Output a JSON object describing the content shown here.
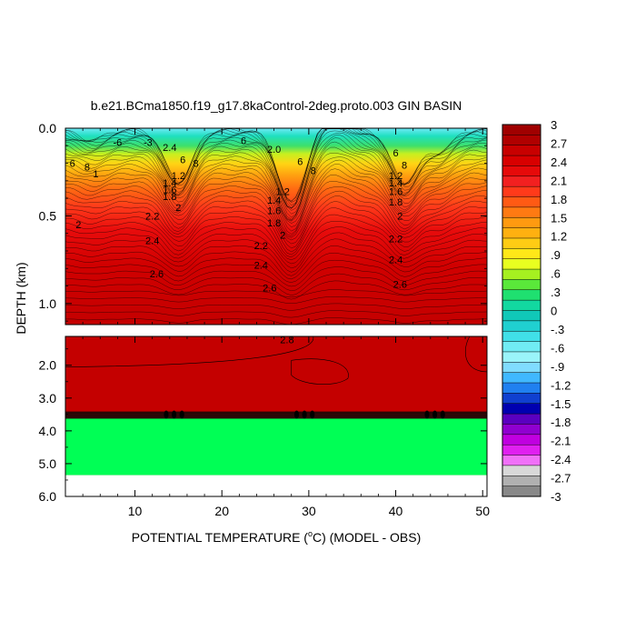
{
  "chart_data": {
    "type": "heatmap",
    "title": "b.e21.BCma1850.f19_g17.8kaControl-2deg.proto.003 GIN BASIN",
    "xlabel_prefix": "POTENTIAL TEMPERATURE (",
    "xlabel_sup": "o",
    "xlabel_suffix": "C) (MODEL - OBS)",
    "ylabel": "DEPTH (km)",
    "xlim": [
      2,
      50.5
    ],
    "x_ticks": [
      10,
      20,
      30,
      40,
      50
    ],
    "x_tick_labels": [
      "10",
      "20",
      "30",
      "40",
      "50"
    ],
    "upper_panel": {
      "ylim": [
        0,
        1.12
      ],
      "y_ticks": [
        0.0,
        0.5,
        1.0
      ],
      "y_tick_labels": [
        "0.0",
        "0.5",
        "1.0"
      ]
    },
    "lower_panel": {
      "ylim": [
        1.12,
        6.0
      ],
      "y_ticks": [
        2.0,
        3.0,
        4.0,
        5.0,
        6.0
      ],
      "y_tick_labels": [
        "2.0",
        "3.0",
        "4.0",
        "5.0",
        "6.0"
      ],
      "fill_color": "#c40000",
      "bottom_band_color": "#00ff55",
      "bottom_band_top": 3.62,
      "bottom_band_bottom": 5.35,
      "dark_band_top": 3.42,
      "dark_band_bottom": 3.62
    },
    "colorbar": {
      "levels": [
        "3",
        "2.7",
        "2.4",
        "2.1",
        "1.8",
        "1.5",
        "1.2",
        ".9",
        ".6",
        ".3",
        "0",
        "-.3",
        "-.6",
        "-.9",
        "-1.2",
        "-1.5",
        "-1.8",
        "-2.1",
        "-2.4",
        "-2.7",
        "-3"
      ],
      "colors": [
        "#a00000",
        "#b00000",
        "#c80000",
        "#d80000",
        "#e60a0a",
        "#f22020",
        "#ff3a1a",
        "#ff5a14",
        "#ff7a12",
        "#ff9a10",
        "#ffb010",
        "#ffcc14",
        "#ffe818",
        "#e8ff20",
        "#a6f020",
        "#5ae83a",
        "#1fe070",
        "#12d8a0",
        "#10c8b8",
        "#20d0d0",
        "#40e0e8",
        "#70ecf4",
        "#9af4fa",
        "#80dcff",
        "#40b8ff",
        "#2080f0",
        "#1040d0",
        "#0000b0",
        "#5a00c0",
        "#9000d0",
        "#c000e0",
        "#e020f0",
        "#f070f8",
        "#d8d8d8",
        "#b0b0b0",
        "#888888"
      ]
    },
    "contour_labels": [
      {
        "x": 8.0,
        "y": 0.08,
        "text": "-6",
        "panel": "upper"
      },
      {
        "x": 11.5,
        "y": 0.08,
        "text": "-3",
        "panel": "upper"
      },
      {
        "x": 14.0,
        "y": 0.11,
        "text": "2.4",
        "panel": "upper"
      },
      {
        "x": 15.5,
        "y": 0.18,
        "text": "6",
        "panel": "upper"
      },
      {
        "x": 17.0,
        "y": 0.2,
        "text": "8",
        "panel": "upper"
      },
      {
        "x": 22.5,
        "y": 0.07,
        "text": "6",
        "panel": "upper"
      },
      {
        "x": 26.0,
        "y": 0.12,
        "text": "2.0",
        "panel": "upper"
      },
      {
        "x": 29.0,
        "y": 0.19,
        "text": "6",
        "panel": "upper"
      },
      {
        "x": 30.5,
        "y": 0.24,
        "text": "8",
        "panel": "upper"
      },
      {
        "x": 40.0,
        "y": 0.14,
        "text": "6",
        "panel": "upper"
      },
      {
        "x": 41.0,
        "y": 0.21,
        "text": "8",
        "panel": "upper"
      },
      {
        "x": 2.8,
        "y": 0.2,
        "text": "6",
        "panel": "upper"
      },
      {
        "x": 4.5,
        "y": 0.22,
        "text": "8",
        "panel": "upper"
      },
      {
        "x": 5.5,
        "y": 0.26,
        "text": "1",
        "panel": "upper"
      },
      {
        "x": 15.0,
        "y": 0.27,
        "text": "1.2",
        "panel": "upper"
      },
      {
        "x": 14.0,
        "y": 0.31,
        "text": "1.4",
        "panel": "upper"
      },
      {
        "x": 14.0,
        "y": 0.35,
        "text": "1.6",
        "panel": "upper"
      },
      {
        "x": 14.0,
        "y": 0.39,
        "text": "1.8",
        "panel": "upper"
      },
      {
        "x": 15.0,
        "y": 0.45,
        "text": "2",
        "panel": "upper"
      },
      {
        "x": 27.0,
        "y": 0.36,
        "text": "1.2",
        "panel": "upper"
      },
      {
        "x": 26.0,
        "y": 0.41,
        "text": "1.4",
        "panel": "upper"
      },
      {
        "x": 26.0,
        "y": 0.47,
        "text": "1.6",
        "panel": "upper"
      },
      {
        "x": 26.0,
        "y": 0.54,
        "text": "1.8",
        "panel": "upper"
      },
      {
        "x": 27.0,
        "y": 0.61,
        "text": "2",
        "panel": "upper"
      },
      {
        "x": 40.0,
        "y": 0.27,
        "text": "1.2",
        "panel": "upper"
      },
      {
        "x": 40.0,
        "y": 0.31,
        "text": "1.4",
        "panel": "upper"
      },
      {
        "x": 40.0,
        "y": 0.36,
        "text": "1.6",
        "panel": "upper"
      },
      {
        "x": 40.0,
        "y": 0.42,
        "text": "1.8",
        "panel": "upper"
      },
      {
        "x": 40.5,
        "y": 0.5,
        "text": "2",
        "panel": "upper"
      },
      {
        "x": 3.5,
        "y": 0.55,
        "text": "2",
        "panel": "upper"
      },
      {
        "x": 12.0,
        "y": 0.5,
        "text": "2.2",
        "panel": "upper"
      },
      {
        "x": 12.0,
        "y": 0.64,
        "text": "2.4",
        "panel": "upper"
      },
      {
        "x": 24.5,
        "y": 0.67,
        "text": "2.2",
        "panel": "upper"
      },
      {
        "x": 24.5,
        "y": 0.78,
        "text": "2.4",
        "panel": "upper"
      },
      {
        "x": 40.0,
        "y": 0.63,
        "text": "2.2",
        "panel": "upper"
      },
      {
        "x": 40.0,
        "y": 0.75,
        "text": "2.4",
        "panel": "upper"
      },
      {
        "x": 12.5,
        "y": 0.83,
        "text": "2.6",
        "panel": "upper"
      },
      {
        "x": 25.5,
        "y": 0.91,
        "text": "2.6",
        "panel": "upper"
      },
      {
        "x": 40.5,
        "y": 0.89,
        "text": "2.6",
        "panel": "upper"
      },
      {
        "x": 27.5,
        "y": 1.22,
        "text": "2.8",
        "panel": "lower"
      }
    ]
  }
}
